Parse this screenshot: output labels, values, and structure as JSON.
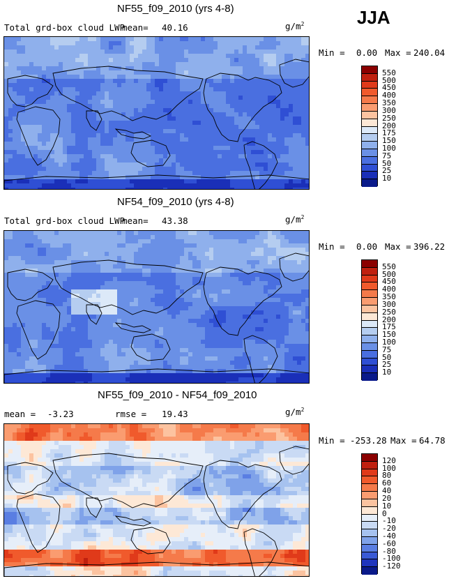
{
  "season": "JJA",
  "panels": [
    {
      "title": "NF55_f09_2010 (yrs 4-8)",
      "field_label": "Total grd-box cloud LWP",
      "mean_label": "mean=",
      "mean": "40.16",
      "unit": "g/m",
      "unit_exp": "2",
      "min_label": "Min =",
      "min": "0.00",
      "max_label": "Max =",
      "max": "240.04",
      "colorbar": {
        "levels": [
          "550",
          "500",
          "450",
          "400",
          "350",
          "300",
          "250",
          "200",
          "175",
          "150",
          "100",
          "75",
          "50",
          "25",
          "10"
        ],
        "colors": [
          "#8b0000",
          "#c0200f",
          "#e03a1a",
          "#f05a2c",
          "#f57a4a",
          "#fa9c70",
          "#fcc3a0",
          "#fde8d6",
          "#dce9f8",
          "#b5cdf0",
          "#8fb0ec",
          "#6a90e6",
          "#4a6fe0",
          "#2f4fd4",
          "#1a2fb8",
          "#0a1a8a"
        ]
      },
      "scheme": "positive"
    },
    {
      "title": "NF54_f09_2010 (yrs 4-8)",
      "field_label": "Total grd-box cloud LWP",
      "mean_label": "mean=",
      "mean": "43.38",
      "unit": "g/m",
      "unit_exp": "2",
      "min_label": "Min =",
      "min": "0.00",
      "max_label": "Max =",
      "max": "396.22",
      "colorbar": {
        "levels": [
          "550",
          "500",
          "450",
          "400",
          "350",
          "300",
          "250",
          "200",
          "175",
          "150",
          "100",
          "75",
          "50",
          "25",
          "10"
        ],
        "colors": [
          "#8b0000",
          "#c0200f",
          "#e03a1a",
          "#f05a2c",
          "#f57a4a",
          "#fa9c70",
          "#fcc3a0",
          "#fde8d6",
          "#dce9f8",
          "#b5cdf0",
          "#8fb0ec",
          "#6a90e6",
          "#4a6fe0",
          "#2f4fd4",
          "#1a2fb8",
          "#0a1a8a"
        ]
      },
      "scheme": "positive"
    },
    {
      "title": "NF55_f09_2010 - NF54_f09_2010",
      "mean_label": "mean =",
      "mean": "-3.23",
      "rmse_label": "rmse =",
      "rmse": "19.43",
      "unit": "g/m",
      "unit_exp": "2",
      "min_label": "Min =",
      "min": "-253.28",
      "max_label": "Max =",
      "max": "64.78",
      "colorbar": {
        "levels": [
          "120",
          "100",
          "80",
          "60",
          "40",
          "20",
          "10",
          "0",
          "-10",
          "-20",
          "-40",
          "-60",
          "-80",
          "-100",
          "-120"
        ],
        "colors": [
          "#8b0000",
          "#c0200f",
          "#e03a1a",
          "#f05a2c",
          "#f57a4a",
          "#fa9c70",
          "#fcc3a0",
          "#fde8d6",
          "#e6eef9",
          "#c9daf4",
          "#a6c2ef",
          "#7fa2e9",
          "#5a7ee2",
          "#3a5ad6",
          "#1f35bd",
          "#0a1a8a"
        ]
      },
      "scheme": "diff"
    }
  ]
}
